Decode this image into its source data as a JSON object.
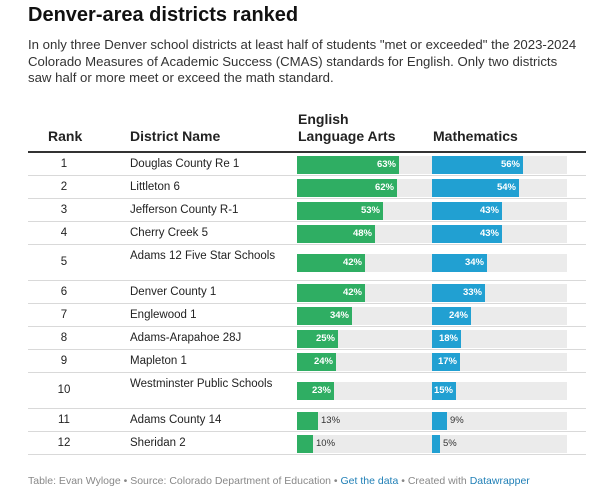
{
  "title": "Denver-area districts ranked",
  "subtitle": "In only three Denver school districts at least half of students \"met or exceeded\" the 2023-2024 Colorado Measures of Academic Success (CMAS) standards for English. Only two districts saw half or more meet or exceed the math standard.",
  "columns": {
    "rank": "Rank",
    "district": "District Name",
    "ela_line1": "English",
    "ela_line2": "Language Arts",
    "math": "Mathematics"
  },
  "colors": {
    "ela": "#2fae63",
    "math": "#21a0d2",
    "track": "#ebebeb"
  },
  "chart_data": {
    "type": "table",
    "columns": [
      "Rank",
      "District Name",
      "English Language Arts",
      "Mathematics"
    ],
    "rows": [
      {
        "rank": "1",
        "district": "Douglas County Re 1",
        "ela": 63,
        "math": 56
      },
      {
        "rank": "2",
        "district": "Littleton 6",
        "ela": 62,
        "math": 54
      },
      {
        "rank": "3",
        "district": "Jefferson County R-1",
        "ela": 53,
        "math": 43
      },
      {
        "rank": "4",
        "district": "Cherry Creek 5",
        "ela": 48,
        "math": 43
      },
      {
        "rank": "5",
        "district": "Adams 12 Five Star Schools",
        "ela": 42,
        "math": 34
      },
      {
        "rank": "6",
        "district": "Denver County 1",
        "ela": 42,
        "math": 33
      },
      {
        "rank": "7",
        "district": "Englewood 1",
        "ela": 34,
        "math": 24
      },
      {
        "rank": "8",
        "district": "Adams-Arapahoe 28J",
        "ela": 25,
        "math": 18
      },
      {
        "rank": "9",
        "district": "Mapleton 1",
        "ela": 24,
        "math": 17
      },
      {
        "rank": "10",
        "district": "Westminster Public Schools",
        "ela": 23,
        "math": 15
      },
      {
        "rank": "11",
        "district": "Adams County 14",
        "ela": 13,
        "math": 9
      },
      {
        "rank": "12",
        "district": "Sheridan 2",
        "ela": 10,
        "math": 5
      }
    ],
    "value_suffix": "%",
    "scale_max": 100
  },
  "footer": {
    "prefix": "Table: Evan Wyloge • Source: Colorado Department of Education • ",
    "get_data": "Get the data",
    "mid": " • Created with ",
    "datawrapper": "Datawrapper"
  }
}
